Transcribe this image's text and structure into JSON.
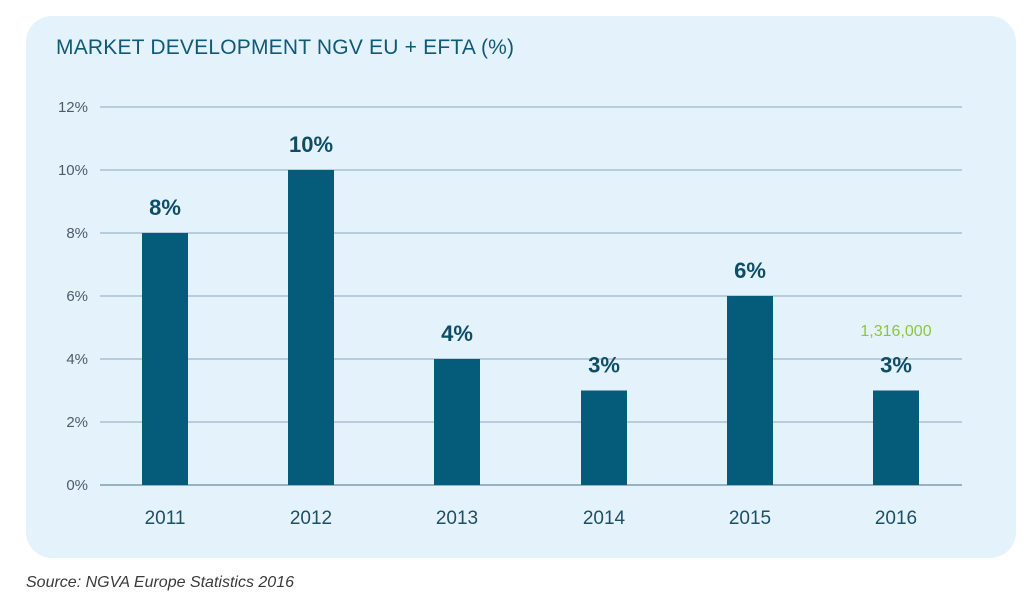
{
  "chart_data": {
    "type": "bar",
    "title": "MARKET DEVELOPMENT NGV EU + EFTA (%)",
    "categories": [
      "2011",
      "2012",
      "2013",
      "2014",
      "2015",
      "2016"
    ],
    "values": [
      8,
      10,
      4,
      3,
      6,
      3
    ],
    "value_labels": [
      "8%",
      "10%",
      "4%",
      "3%",
      "6%",
      "3%"
    ],
    "ylim": [
      0,
      12
    ],
    "yticks": [
      0,
      2,
      4,
      6,
      8,
      10,
      12
    ],
    "ytick_labels": [
      "0%",
      "2%",
      "4%",
      "6%",
      "8%",
      "10%",
      "12%"
    ],
    "xlabel": "",
    "ylabel": "",
    "grid": true,
    "annotation": {
      "text": "1,316,000",
      "category": "2016"
    },
    "colors": {
      "bar": "#055b7a",
      "grid": "#8aa8bf",
      "axis_text": "#4a5d6b",
      "value_text": "#0e4d68",
      "annotation": "#8cc63f",
      "panel": "#e4f2fb"
    }
  },
  "source": "Source: NGVA Europe Statistics 2016"
}
